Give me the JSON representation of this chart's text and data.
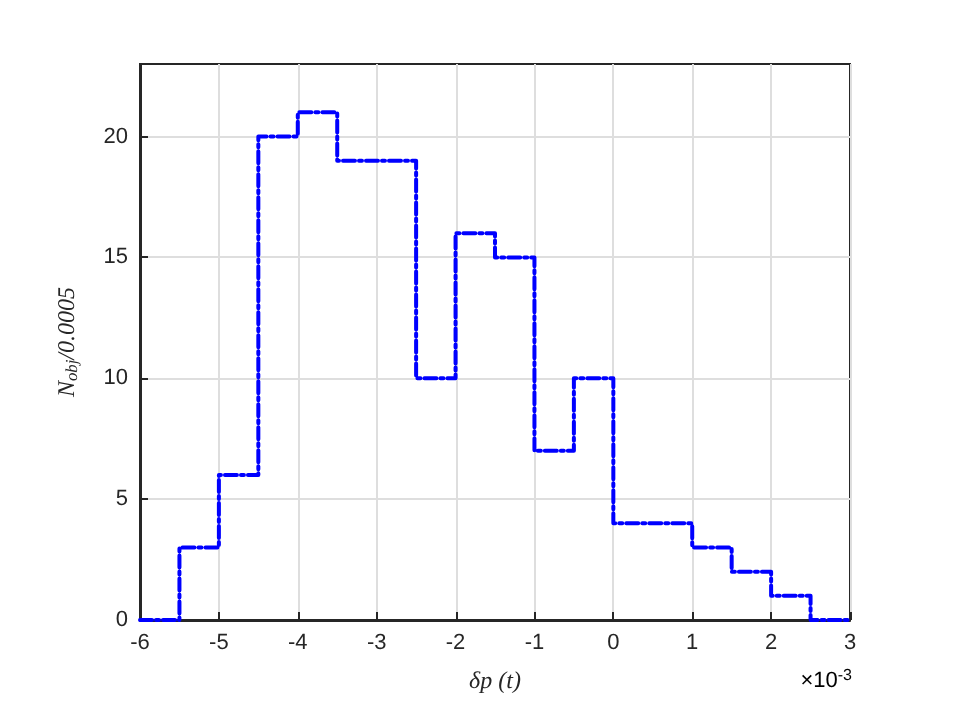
{
  "chart_data": {
    "type": "histogram",
    "xlabel": "δp (t)",
    "ylabel": "N$_{obj}$/0.0005",
    "annotations": [
      "×10$^{-3}$"
    ],
    "bins": [
      -6,
      -5.5,
      -5,
      -4.5,
      -4,
      -3.5,
      -3,
      -2.5,
      -2,
      -1.5,
      -1,
      -0.5,
      0,
      0.5,
      1,
      1.5,
      2,
      2.5,
      3
    ],
    "values": [
      0,
      3,
      6,
      20,
      21,
      19,
      19,
      10,
      16,
      15,
      7,
      10,
      4,
      4,
      3,
      2,
      1,
      0
    ],
    "color": "#0000ff",
    "line_style": "dashed",
    "xlim": [
      -6,
      3
    ],
    "xticks": [
      -6,
      -5,
      -4,
      -3,
      -2,
      -1,
      0,
      1,
      2,
      3
    ],
    "ylim": [
      0,
      23
    ],
    "yticks": [
      0,
      5,
      10,
      15,
      20
    ],
    "grid": true
  }
}
